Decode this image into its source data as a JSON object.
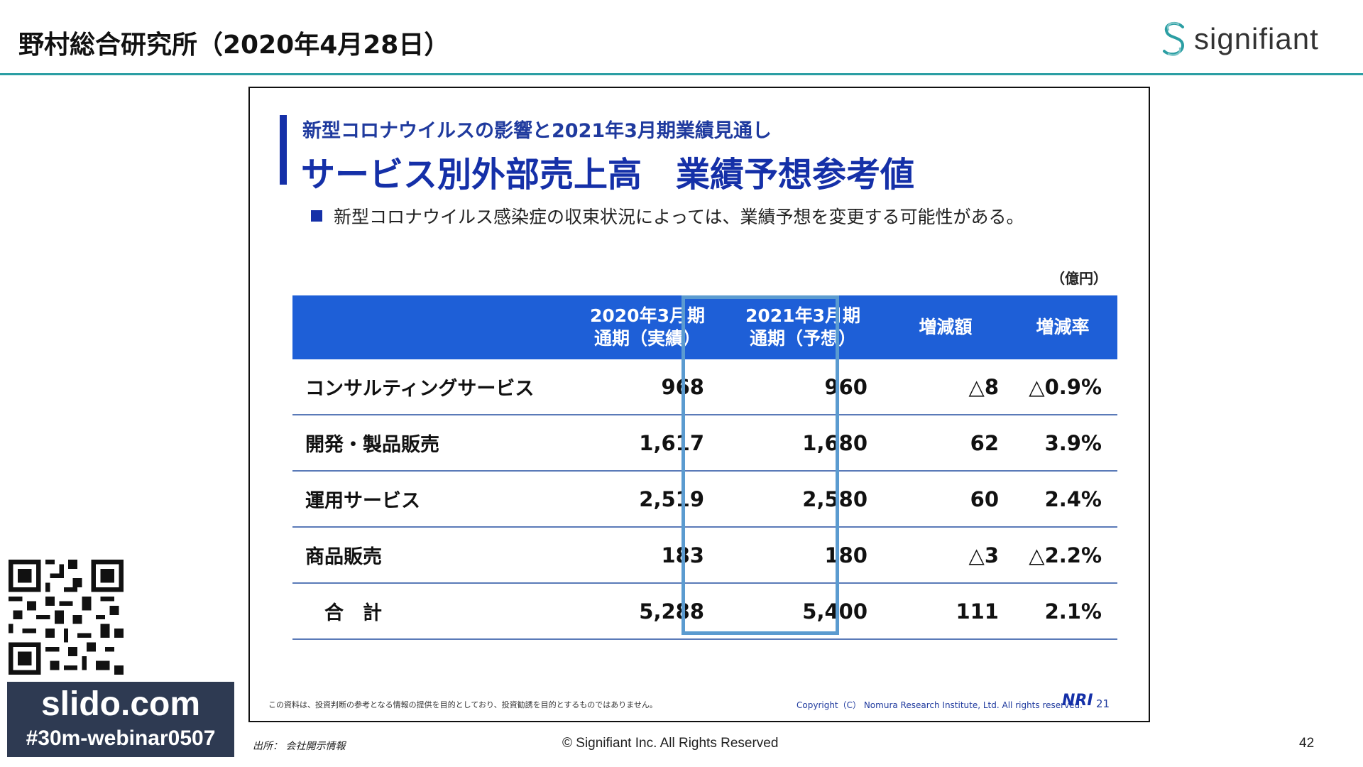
{
  "header": {
    "title": "野村総合研究所（2020年4月28日）",
    "brand_name": "signifiant",
    "brand_icon": "signifiant-logo-icon"
  },
  "slide": {
    "subtitle": "新型コロナウイルスの影響と2021年3月期業績見通し",
    "title": "サービス別外部売上高　業績予想参考値",
    "bullet": "新型コロナウイルス感染症の収束状況によっては、業績予想を変更する可能性がある。",
    "unit": "（億円）",
    "table": {
      "headers": [
        {
          "line1": "2020年3月期",
          "line2": "通期（実績）"
        },
        {
          "line1": "2021年3月期",
          "line2": "通期（予想）"
        },
        {
          "line1": "増減額",
          "line2": ""
        },
        {
          "line1": "増減率",
          "line2": ""
        }
      ],
      "rows": [
        {
          "label": "コンサルティングサービス",
          "fy2020": "968",
          "fy2021": "960",
          "diff": "△8",
          "rate": "△0.9%"
        },
        {
          "label": "開発・製品販売",
          "fy2020": "1,617",
          "fy2021": "1,680",
          "diff": "62",
          "rate": "3.9%"
        },
        {
          "label": "運用サービス",
          "fy2020": "2,519",
          "fy2021": "2,580",
          "diff": "60",
          "rate": "2.4%"
        },
        {
          "label": "商品販売",
          "fy2020": "183",
          "fy2021": "180",
          "diff": "△3",
          "rate": "△2.2%"
        },
        {
          "label": "　合　計",
          "fy2020": "5,288",
          "fy2021": "5,400",
          "diff": "111",
          "rate": "2.1%"
        }
      ]
    },
    "disclaimer": "この資料は、投資判断の参考となる情報の提供を目的としており、投資勧誘を目的とするものではありません。",
    "copyright": "Copyright（C） Nomura Research Institute, Ltd. All rights reserved.",
    "logo_text": "NRI",
    "page": "21"
  },
  "sidebar": {
    "slido_url": "slido.com",
    "slido_tag": "#30m-webinar0507"
  },
  "footer": {
    "source": "出所：  会社開示情報",
    "copyright": "© Signifiant Inc. All Rights Reserved",
    "page_number": "42"
  },
  "colors": {
    "accent": "#2b9ea3",
    "slide_blue": "#1530a8",
    "table_header": "#1e5fd7",
    "highlight": "#5b9bd0",
    "slido_bg": "#2e3a52"
  }
}
